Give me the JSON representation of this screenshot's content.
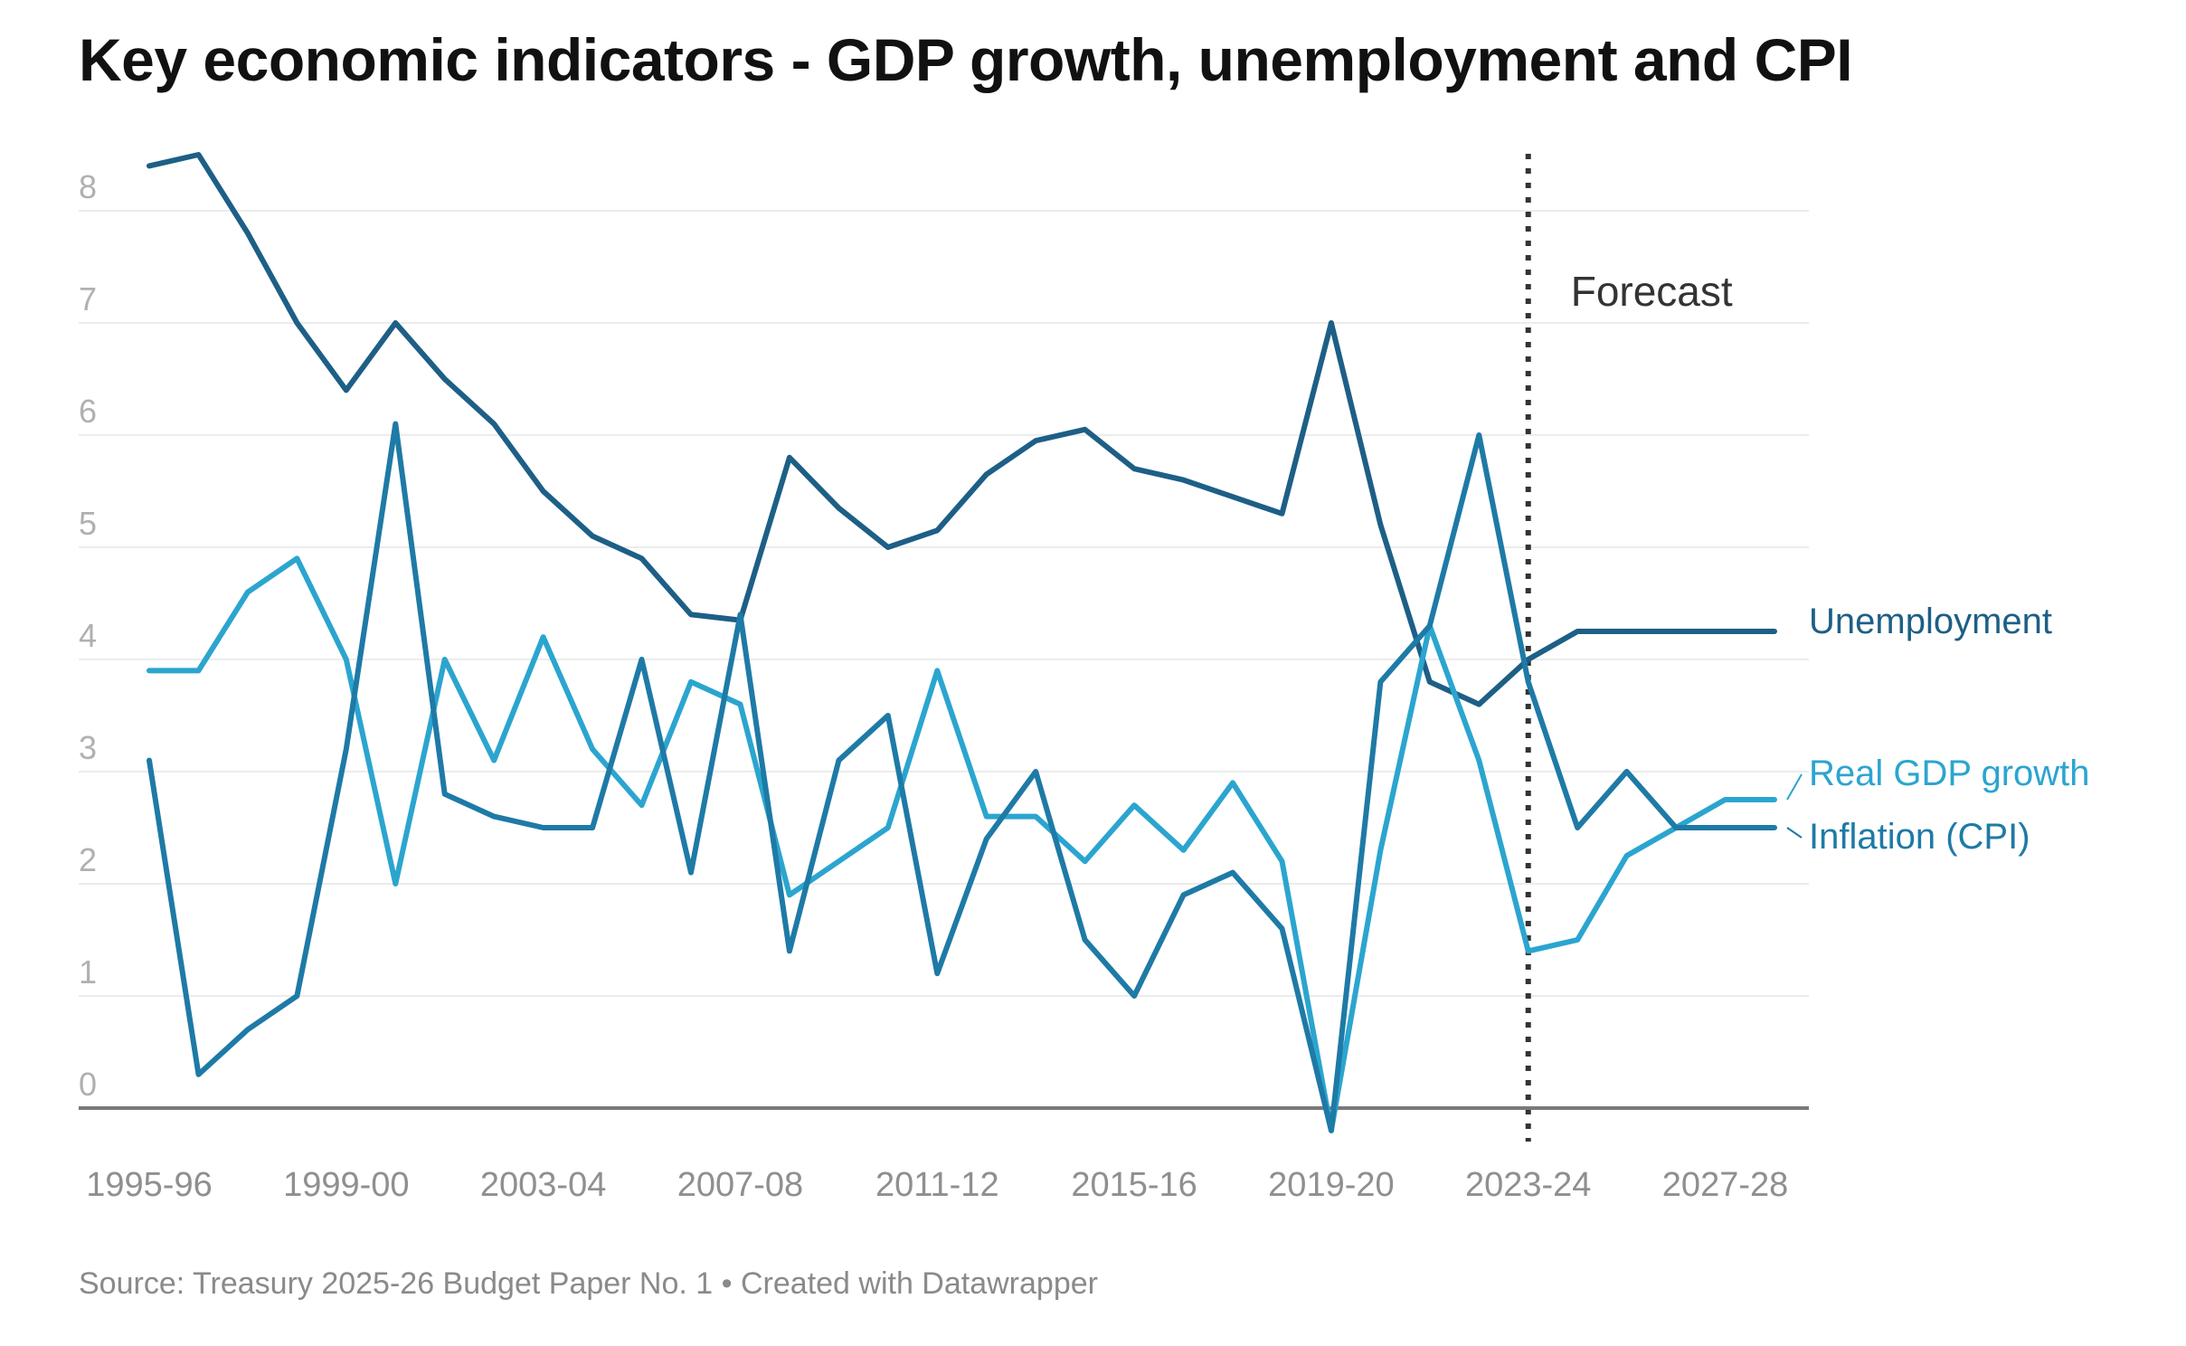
{
  "title": "Key economic indicators - GDP growth, unemployment and CPI",
  "source": "Source: Treasury 2025-26 Budget Paper No. 1 • Created with Datawrapper",
  "chart_data": {
    "type": "line",
    "title": "Key economic indicators - GDP growth, unemployment and CPI",
    "xlabel": "",
    "ylabel": "",
    "ylim": [
      0,
      8
    ],
    "yticks": [
      "0",
      "1",
      "2",
      "3",
      "4",
      "5",
      "6",
      "7",
      "8"
    ],
    "xticks": [
      "1995-96",
      "1999-00",
      "2003-04",
      "2007-08",
      "2011-12",
      "2015-16",
      "2019-20",
      "2023-24",
      "2027-28"
    ],
    "grid": true,
    "legend": "inline labels at right end of each line",
    "annotation": {
      "text": "Forecast",
      "start": "2023-24"
    },
    "x": [
      "1995-96",
      "1996-97",
      "1997-98",
      "1998-99",
      "1999-00",
      "2000-01",
      "2001-02",
      "2002-03",
      "2003-04",
      "2004-05",
      "2005-06",
      "2006-07",
      "2007-08",
      "2008-09",
      "2009-10",
      "2010-11",
      "2011-12",
      "2012-13",
      "2013-14",
      "2014-15",
      "2015-16",
      "2016-17",
      "2017-18",
      "2018-19",
      "2019-20",
      "2020-21",
      "2021-22",
      "2022-23",
      "2023-24",
      "2024-25",
      "2025-26",
      "2026-27",
      "2027-28",
      "2028-29"
    ],
    "series": [
      {
        "name": "Unemployment",
        "color": "#1d5f86",
        "values": [
          8.4,
          8.5,
          7.8,
          7.0,
          6.4,
          7.0,
          6.5,
          6.1,
          5.5,
          5.1,
          4.9,
          4.4,
          4.35,
          5.8,
          5.35,
          5.0,
          5.15,
          5.65,
          5.95,
          6.05,
          5.7,
          5.6,
          5.45,
          5.3,
          7.0,
          5.2,
          3.8,
          3.6,
          4.0,
          4.25,
          4.25,
          4.25,
          4.25,
          4.25
        ]
      },
      {
        "name": "Real GDP growth",
        "color": "#2ba5cf",
        "values": [
          3.9,
          3.9,
          4.6,
          4.9,
          4.0,
          2.0,
          4.0,
          3.1,
          4.2,
          3.2,
          2.7,
          3.8,
          3.6,
          1.9,
          2.2,
          2.5,
          3.9,
          2.6,
          2.6,
          2.2,
          2.7,
          2.3,
          2.9,
          2.2,
          -0.2,
          2.3,
          4.3,
          3.1,
          1.4,
          1.5,
          2.25,
          2.5,
          2.75,
          2.75
        ]
      },
      {
        "name": "Inflation (CPI)",
        "color": "#1e7aa6",
        "values": [
          3.1,
          0.3,
          0.7,
          1.0,
          3.2,
          6.1,
          2.8,
          2.6,
          2.5,
          2.5,
          4.0,
          2.1,
          4.4,
          1.4,
          3.1,
          3.5,
          1.2,
          2.4,
          3.0,
          1.5,
          1.0,
          1.9,
          2.1,
          1.6,
          -0.2,
          3.8,
          4.3,
          6.0,
          3.8,
          2.5,
          3.0,
          2.5,
          2.5,
          2.5
        ]
      }
    ]
  }
}
